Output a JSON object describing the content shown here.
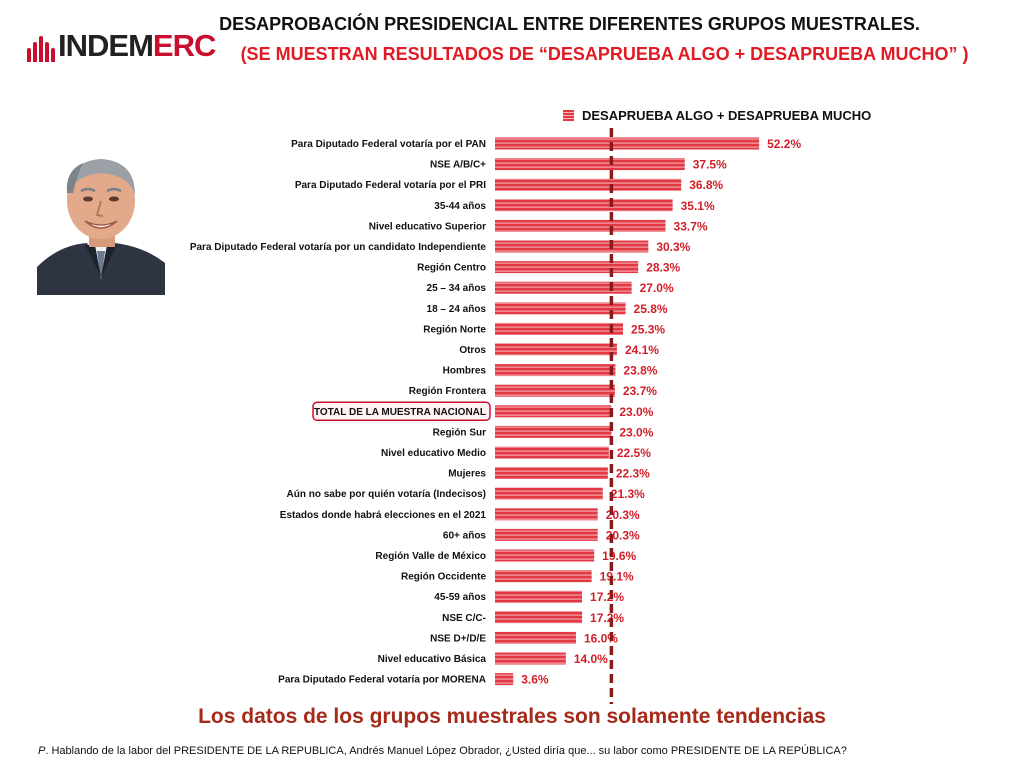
{
  "brand": {
    "name_part1": "INDEM",
    "name_part2": "ERC"
  },
  "title": "DESAPROBACIÓN PRESIDENCIAL ENTRE DIFERENTES GRUPOS MUESTRALES.",
  "subtitle": "(SE MUESTRAN RESULTADOS DE  “DESAPRUEBA ALGO + DESAPRUEBA MUCHO” )",
  "colors": {
    "bar": "#e23a45",
    "bar_stripe": "#f7b5ba",
    "value_text": "#d11f2a",
    "reference_line": "#8b1a1a",
    "highlight_border": "#c8102e"
  },
  "chart_data": {
    "type": "bar",
    "orientation": "horizontal",
    "title": "DESAPROBACIÓN PRESIDENCIAL ENTRE DIFERENTES GRUPOS MUESTRALES.",
    "series_name": "DESAPRUEBA ALGO + DESAPRUEBA MUCHO",
    "unit": "%",
    "xlim": [
      0,
      55
    ],
    "reference_value": 23.0,
    "highlight_category": "TOTAL DE LA MUESTRA NACIONAL",
    "categories": [
      "Para Diputado Federal votaría por el PAN",
      "NSE A/B/C+",
      "Para Diputado Federal votaría por el PRI",
      "35-44 años",
      "Nivel educativo Superior",
      "Para Diputado Federal votaría por un candidato Independiente",
      "Región Centro",
      "25 – 34 años",
      "18 – 24 años",
      "Región Norte",
      "Otros",
      "Hombres",
      "Región Frontera",
      "TOTAL DE LA MUESTRA NACIONAL",
      "Región Sur",
      "Nivel educativo Medio",
      "Mujeres",
      "Aún no sabe por quién votaría (Indecisos)",
      "Estados donde habrá elecciones en el 2021",
      "60+ años",
      "Región Valle de México",
      "Región Occidente",
      "45-59 años",
      "NSE C/C-",
      "NSE D+/D/E",
      "Nivel educativo Básica",
      "Para Diputado Federal votaría por MORENA"
    ],
    "values": [
      52.2,
      37.5,
      36.8,
      35.1,
      33.7,
      30.3,
      28.3,
      27.0,
      25.8,
      25.3,
      24.1,
      23.8,
      23.7,
      23.0,
      23.0,
      22.5,
      22.3,
      21.3,
      20.3,
      20.3,
      19.6,
      19.1,
      17.2,
      17.2,
      16.0,
      14.0,
      3.6
    ]
  },
  "footer_note": "Los datos de los grupos muestrales son solamente tendencias",
  "question": {
    "prefix": "P",
    "text": ". Hablando de la labor del PRESIDENTE DE LA REPUBLICA, Andrés Manuel López Obrador, ¿Usted diría que... su labor como PRESIDENTE DE LA REPÚBLICA?"
  }
}
